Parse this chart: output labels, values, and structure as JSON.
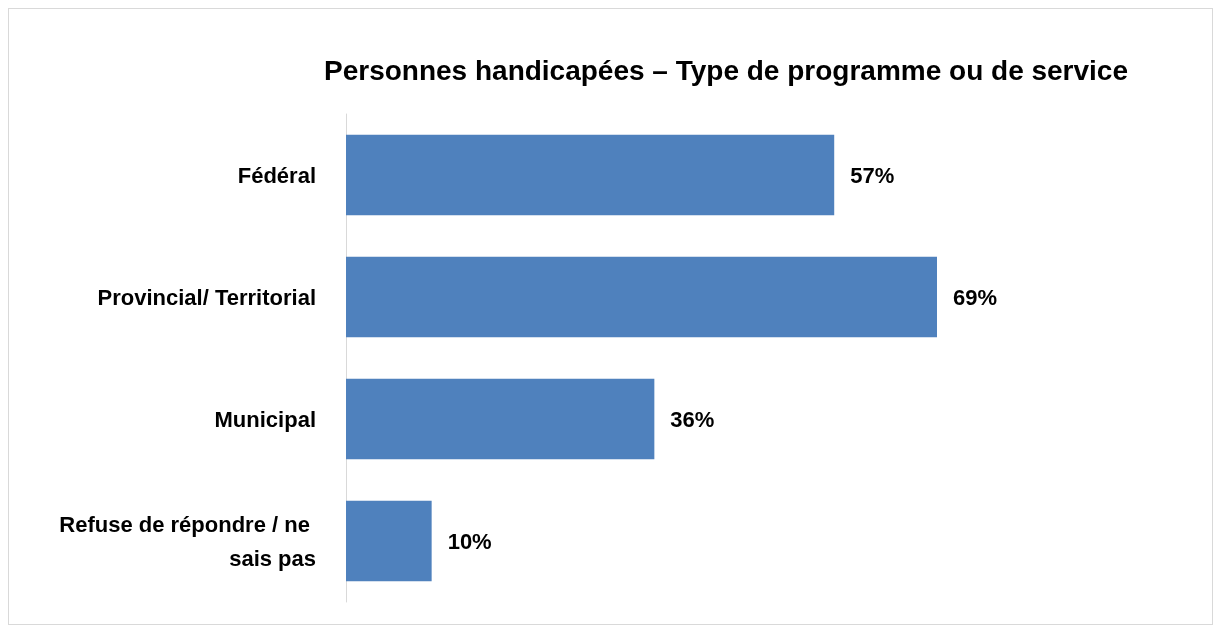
{
  "chart_data": {
    "type": "bar",
    "orientation": "horizontal",
    "title": "Personnes handicapées – Type de programme ou de service",
    "categories": [
      "Fédéral",
      "Provincial/ Territorial",
      "Municipal",
      "Refuse de répondre / ne sais pas"
    ],
    "values": [
      57,
      69,
      36,
      10
    ],
    "value_labels": [
      "57%",
      "69%",
      "36%",
      "10%"
    ],
    "color": "#4f81bd"
  }
}
